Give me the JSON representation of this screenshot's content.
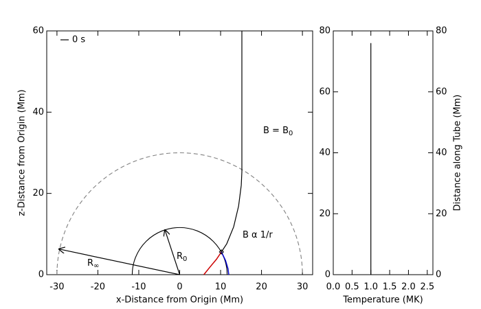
{
  "chart_data": [
    {
      "type": "line",
      "xlabel": "x-Distance from Origin (Mm)",
      "ylabel": "z-Distance from Origin (Mm)",
      "xlim": [
        -32.5,
        32.5
      ],
      "ylim": [
        0,
        60
      ],
      "xticks": [
        -30,
        -20,
        -10,
        0,
        10,
        20,
        30
      ],
      "yticks": [
        0,
        20,
        40,
        60
      ],
      "legend": "top-left",
      "series": [
        {
          "name": "0 s",
          "color": "#000000",
          "x": [
            10.2,
            11.5,
            13.2,
            14.4,
            15.05,
            15.2,
            15.2
          ],
          "y": [
            5.6,
            7.6,
            11.8,
            16.9,
            22,
            25.3,
            60
          ]
        }
      ],
      "curves": [
        {
          "color": "#cc0000",
          "x": [
            5.9,
            7.5,
            9,
            10.2
          ],
          "y": [
            0,
            2,
            3.8,
            5.6
          ]
        },
        {
          "color": "#0000cc",
          "x": [
            10.2,
            11.2,
            11.8,
            12
          ],
          "y": [
            5.6,
            3.5,
            1.5,
            0
          ]
        }
      ],
      "circles": [
        {
          "r": 30,
          "color": "#808080",
          "dashed": true
        },
        {
          "r": 11.6,
          "color": "#000000",
          "dashed": false
        }
      ],
      "arrows": [
        {
          "x": [
            0,
            -29.5
          ],
          "y": [
            0,
            6.3
          ]
        },
        {
          "x": [
            0,
            -3.6
          ],
          "y": [
            0,
            11
          ]
        }
      ],
      "marker": {
        "x": 10.2,
        "y": 5.6
      },
      "annotations": [
        {
          "text": "B = B",
          "sub": "0"
        },
        {
          "text": "B α 1/r"
        },
        {
          "text": "R",
          "sub": "∞"
        },
        {
          "text": "R",
          "sub": "0"
        }
      ]
    },
    {
      "type": "line",
      "xlabel": "Temperature (MK)",
      "y2label": "Distance along Tube (Mm)",
      "xlim": [
        0,
        2.65
      ],
      "ylim": [
        0,
        80
      ],
      "y2lim": [
        0,
        80
      ],
      "xticks": [
        {
          "value": 0,
          "label": "0.0"
        },
        {
          "value": 0.5,
          "label": "0.5"
        },
        {
          "value": 1,
          "label": "1.0"
        },
        {
          "value": 1.5,
          "label": "1.5"
        },
        {
          "value": 2,
          "label": "2.0"
        },
        {
          "value": 2.5,
          "label": "2.5"
        }
      ],
      "yticks": [
        0,
        20,
        40,
        60,
        80
      ],
      "y2ticks": [
        0,
        20,
        40,
        60,
        80
      ],
      "series": [
        {
          "color": "#000000",
          "x": [
            1,
            1
          ],
          "y": [
            0,
            76
          ]
        }
      ]
    }
  ]
}
